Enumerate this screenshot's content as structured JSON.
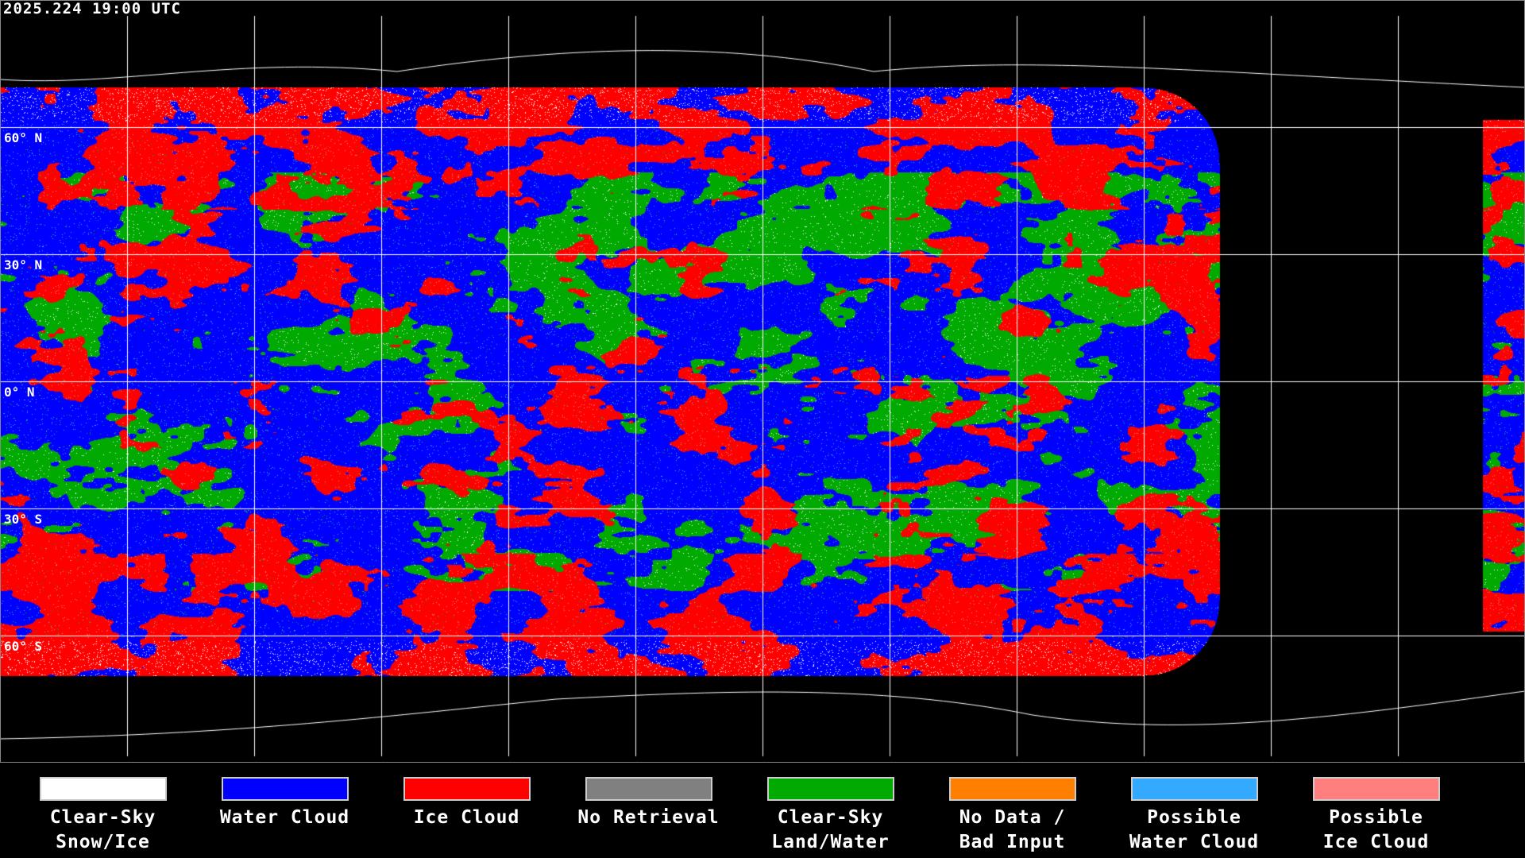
{
  "timestamp": "2025.224 19:00 UTC",
  "latitude_labels": [
    "60° N",
    "30° N",
    "0° N",
    "30° S",
    "60° S"
  ],
  "legend": [
    {
      "line1": "Clear-Sky",
      "line2": "Snow/Ice",
      "color": "#ffffff"
    },
    {
      "line1": "Water Cloud",
      "line2": "",
      "color": "#0000ff"
    },
    {
      "line1": "Ice Cloud",
      "line2": "",
      "color": "#ff0000"
    },
    {
      "line1": "No Retrieval",
      "line2": "",
      "color": "#808080"
    },
    {
      "line1": "Clear-Sky",
      "line2": "Land/Water",
      "color": "#00aa00"
    },
    {
      "line1": "No Data /",
      "line2": "Bad Input",
      "color": "#ff8000"
    },
    {
      "line1": "Possible",
      "line2": "Water Cloud",
      "color": "#33aaff"
    },
    {
      "line1": "Possible",
      "line2": "Ice Cloud",
      "color": "#ff7f7f"
    }
  ]
}
